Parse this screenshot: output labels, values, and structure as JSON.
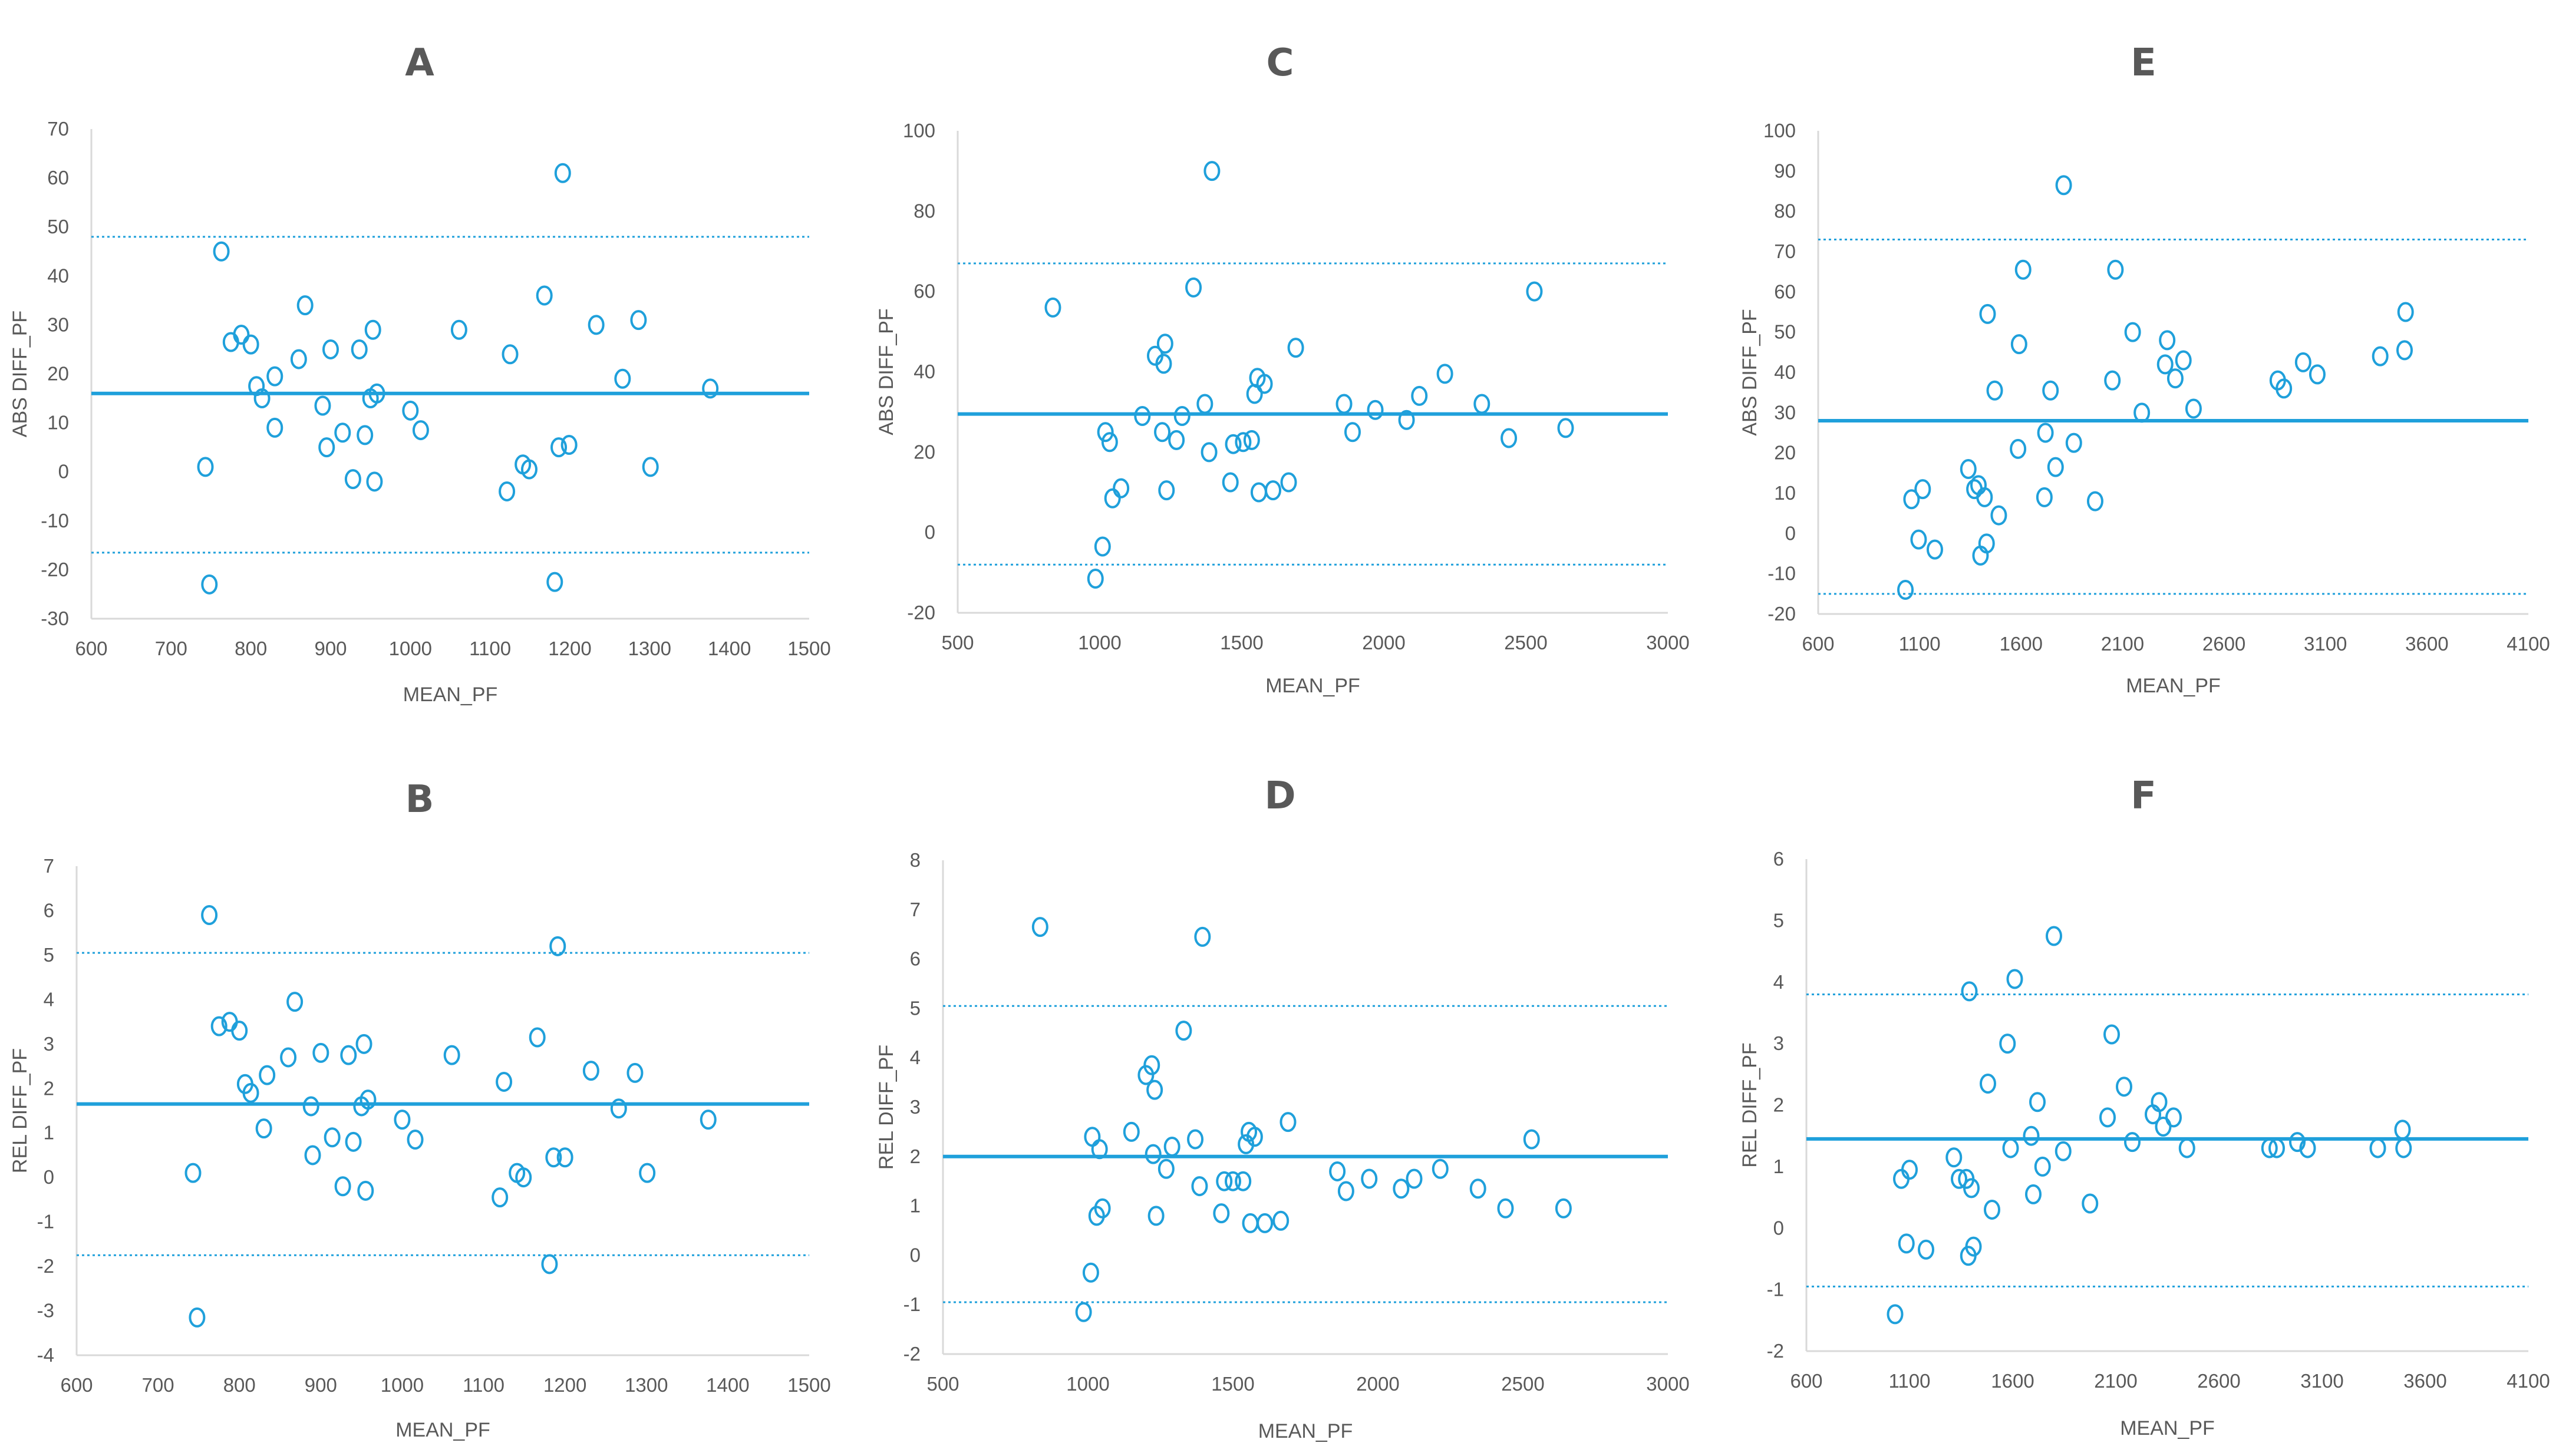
{
  "chart_data": [
    {
      "id": "A",
      "type": "scatter",
      "title": "A",
      "xlabel": "MEAN_PF",
      "ylabel": "ABS DIFF_PF",
      "xlim": [
        600,
        1500
      ],
      "ylim": [
        -30,
        70
      ],
      "xticks": [
        600,
        700,
        800,
        900,
        1000,
        1100,
        1200,
        1300,
        1400,
        1500
      ],
      "yticks": [
        -30,
        -20,
        -10,
        0,
        10,
        20,
        30,
        40,
        50,
        60,
        70
      ],
      "mean_diff": 16,
      "loa_upper": 48,
      "loa_lower": -16.5,
      "points": [
        [
          743,
          1
        ],
        [
          748,
          -23
        ],
        [
          763,
          45
        ],
        [
          775,
          26.5
        ],
        [
          788,
          28
        ],
        [
          800,
          26
        ],
        [
          807,
          17.5
        ],
        [
          814,
          15
        ],
        [
          830,
          19.5
        ],
        [
          830,
          9
        ],
        [
          860,
          23
        ],
        [
          868,
          34
        ],
        [
          890,
          13.5
        ],
        [
          895,
          5
        ],
        [
          900,
          25
        ],
        [
          915,
          8
        ],
        [
          928,
          -1.5
        ],
        [
          936,
          25
        ],
        [
          943,
          7.5
        ],
        [
          950,
          15
        ],
        [
          953,
          29
        ],
        [
          955,
          -2
        ],
        [
          958,
          16
        ],
        [
          1000,
          12.5
        ],
        [
          1013,
          8.5
        ],
        [
          1061,
          29
        ],
        [
          1121,
          -4
        ],
        [
          1125,
          24
        ],
        [
          1141,
          1.5
        ],
        [
          1149,
          0.5
        ],
        [
          1168,
          36
        ],
        [
          1181,
          -22.5
        ],
        [
          1186,
          5
        ],
        [
          1191,
          61
        ],
        [
          1199,
          5.5
        ],
        [
          1233,
          30
        ],
        [
          1266,
          19
        ],
        [
          1286,
          31
        ],
        [
          1301,
          1
        ],
        [
          1376,
          17
        ]
      ]
    },
    {
      "id": "B",
      "type": "scatter",
      "title": "B",
      "xlabel": "MEAN_PF",
      "ylabel": "REL DIFF_PF",
      "xlim": [
        600,
        1500
      ],
      "ylim": [
        -4,
        7
      ],
      "xticks": [
        600,
        700,
        800,
        900,
        1000,
        1100,
        1200,
        1300,
        1400,
        1500
      ],
      "yticks": [
        -4,
        -3,
        -2,
        -1,
        0,
        1,
        2,
        3,
        4,
        5,
        6,
        7
      ],
      "mean_diff": 1.65,
      "loa_upper": 5.05,
      "loa_lower": -1.75,
      "points": [
        [
          743,
          0.1
        ],
        [
          748,
          -3.15
        ],
        [
          763,
          5.9
        ],
        [
          775,
          3.4
        ],
        [
          788,
          3.5
        ],
        [
          800,
          3.3
        ],
        [
          807,
          2.1
        ],
        [
          814,
          1.9
        ],
        [
          830,
          1.1
        ],
        [
          834,
          2.3
        ],
        [
          860,
          2.7
        ],
        [
          868,
          3.95
        ],
        [
          888,
          1.6
        ],
        [
          890,
          0.5
        ],
        [
          900,
          2.8
        ],
        [
          914,
          0.9
        ],
        [
          927,
          -0.2
        ],
        [
          934,
          2.75
        ],
        [
          940,
          0.8
        ],
        [
          950,
          1.6
        ],
        [
          953,
          3.0
        ],
        [
          955,
          -0.3
        ],
        [
          958,
          1.75
        ],
        [
          1000,
          1.3
        ],
        [
          1016,
          0.85
        ],
        [
          1061,
          2.75
        ],
        [
          1120,
          -0.45
        ],
        [
          1125,
          2.15
        ],
        [
          1141,
          0.1
        ],
        [
          1149,
          0
        ],
        [
          1166,
          3.15
        ],
        [
          1181,
          -1.95
        ],
        [
          1186,
          0.45
        ],
        [
          1191,
          5.2
        ],
        [
          1200,
          0.45
        ],
        [
          1232,
          2.4
        ],
        [
          1266,
          1.55
        ],
        [
          1286,
          2.35
        ],
        [
          1301,
          0.1
        ],
        [
          1376,
          1.3
        ]
      ]
    },
    {
      "id": "C",
      "type": "scatter",
      "title": "C",
      "xlabel": "MEAN_PF",
      "ylabel": "ABS DIFF_PF",
      "xlim": [
        500,
        3000
      ],
      "ylim": [
        -20,
        100
      ],
      "xticks": [
        500,
        1000,
        1500,
        2000,
        2500,
        3000
      ],
      "yticks": [
        -20,
        0,
        20,
        40,
        60,
        80,
        100
      ],
      "mean_diff": 29.5,
      "loa_upper": 67,
      "loa_lower": -8,
      "points": [
        [
          835,
          56
        ],
        [
          985,
          -11.5
        ],
        [
          1010,
          -3.5
        ],
        [
          1020,
          25
        ],
        [
          1035,
          22.5
        ],
        [
          1045,
          8.5
        ],
        [
          1075,
          11
        ],
        [
          1150,
          29
        ],
        [
          1195,
          44
        ],
        [
          1220,
          25
        ],
        [
          1225,
          42
        ],
        [
          1230,
          47
        ],
        [
          1235,
          10.5
        ],
        [
          1270,
          23
        ],
        [
          1290,
          29
        ],
        [
          1330,
          61
        ],
        [
          1370,
          32
        ],
        [
          1385,
          20
        ],
        [
          1395,
          90
        ],
        [
          1460,
          12.5
        ],
        [
          1470,
          22
        ],
        [
          1505,
          22.5
        ],
        [
          1535,
          23
        ],
        [
          1545,
          34.5
        ],
        [
          1555,
          38.5
        ],
        [
          1560,
          10
        ],
        [
          1580,
          37
        ],
        [
          1610,
          10.5
        ],
        [
          1665,
          12.5
        ],
        [
          1690,
          46
        ],
        [
          1860,
          32
        ],
        [
          1890,
          25
        ],
        [
          1970,
          30.5
        ],
        [
          2080,
          28
        ],
        [
          2125,
          34
        ],
        [
          2215,
          39.5
        ],
        [
          2345,
          32
        ],
        [
          2440,
          23.5
        ],
        [
          2530,
          60
        ],
        [
          2640,
          26
        ]
      ]
    },
    {
      "id": "D",
      "type": "scatter",
      "title": "D",
      "xlabel": "MEAN_PF",
      "ylabel": "REL DIFF_PF",
      "xlim": [
        500,
        3000
      ],
      "ylim": [
        -2,
        8
      ],
      "xticks": [
        500,
        1000,
        1500,
        2000,
        2500,
        3000
      ],
      "yticks": [
        -2,
        -1,
        0,
        1,
        2,
        3,
        4,
        5,
        6,
        7,
        8
      ],
      "mean_diff": 2.0,
      "loa_upper": 5.05,
      "loa_lower": -0.95,
      "points": [
        [
          835,
          6.65
        ],
        [
          985,
          -1.15
        ],
        [
          1010,
          -0.35
        ],
        [
          1015,
          2.4
        ],
        [
          1030,
          0.8
        ],
        [
          1040,
          2.15
        ],
        [
          1050,
          0.95
        ],
        [
          1150,
          2.5
        ],
        [
          1200,
          3.65
        ],
        [
          1220,
          3.85
        ],
        [
          1225,
          2.05
        ],
        [
          1230,
          3.35
        ],
        [
          1235,
          0.8
        ],
        [
          1270,
          1.75
        ],
        [
          1290,
          2.2
        ],
        [
          1330,
          4.55
        ],
        [
          1370,
          2.35
        ],
        [
          1385,
          1.4
        ],
        [
          1395,
          6.45
        ],
        [
          1460,
          0.85
        ],
        [
          1470,
          1.5
        ],
        [
          1500,
          1.5
        ],
        [
          1535,
          1.5
        ],
        [
          1545,
          2.25
        ],
        [
          1555,
          2.5
        ],
        [
          1560,
          0.65
        ],
        [
          1575,
          2.4
        ],
        [
          1610,
          0.65
        ],
        [
          1665,
          0.7
        ],
        [
          1690,
          2.7
        ],
        [
          1860,
          1.7
        ],
        [
          1890,
          1.3
        ],
        [
          1970,
          1.55
        ],
        [
          2080,
          1.35
        ],
        [
          2125,
          1.55
        ],
        [
          2215,
          1.75
        ],
        [
          2345,
          1.35
        ],
        [
          2440,
          0.95
        ],
        [
          2530,
          2.35
        ],
        [
          2640,
          0.95
        ]
      ]
    },
    {
      "id": "E",
      "type": "scatter",
      "title": "E",
      "xlabel": "MEAN_PF",
      "ylabel": "ABS DIFF_PF",
      "xlim": [
        600,
        4100
      ],
      "ylim": [
        -20,
        100
      ],
      "xticks": [
        600,
        1100,
        1600,
        2100,
        2600,
        3100,
        3600,
        4100
      ],
      "yticks": [
        -20,
        -10,
        0,
        10,
        20,
        30,
        40,
        50,
        60,
        70,
        80,
        90,
        100
      ],
      "mean_diff": 28,
      "loa_upper": 73,
      "loa_lower": -15,
      "points": [
        [
          1030,
          -14
        ],
        [
          1060,
          8.5
        ],
        [
          1095,
          -1.5
        ],
        [
          1115,
          11
        ],
        [
          1175,
          -4
        ],
        [
          1340,
          16
        ],
        [
          1370,
          11
        ],
        [
          1390,
          12
        ],
        [
          1400,
          -5.5
        ],
        [
          1420,
          9
        ],
        [
          1430,
          -2.5
        ],
        [
          1435,
          54.5
        ],
        [
          1470,
          35.5
        ],
        [
          1490,
          4.5
        ],
        [
          1585,
          21
        ],
        [
          1590,
          47
        ],
        [
          1610,
          65.5
        ],
        [
          1715,
          9
        ],
        [
          1720,
          25
        ],
        [
          1745,
          35.5
        ],
        [
          1770,
          16.5
        ],
        [
          1810,
          86.5
        ],
        [
          1860,
          22.5
        ],
        [
          1965,
          8
        ],
        [
          2050,
          38
        ],
        [
          2065,
          65.5
        ],
        [
          2150,
          50
        ],
        [
          2195,
          30
        ],
        [
          2310,
          42
        ],
        [
          2320,
          48
        ],
        [
          2360,
          38.5
        ],
        [
          2400,
          43
        ],
        [
          2450,
          31
        ],
        [
          2865,
          38
        ],
        [
          2895,
          36
        ],
        [
          2990,
          42.5
        ],
        [
          3060,
          39.5
        ],
        [
          3370,
          44
        ],
        [
          3490,
          45.5
        ],
        [
          3495,
          55
        ]
      ]
    },
    {
      "id": "F",
      "type": "scatter",
      "title": "F",
      "xlabel": "MEAN_PF",
      "ylabel": "REL DIFF_PF",
      "xlim": [
        600,
        4100
      ],
      "ylim": [
        -2,
        6
      ],
      "xticks": [
        600,
        1100,
        1600,
        2100,
        2600,
        3100,
        3600,
        4100
      ],
      "yticks": [
        -2,
        -1,
        0,
        1,
        2,
        3,
        4,
        5,
        6
      ],
      "mean_diff": 1.45,
      "loa_upper": 3.8,
      "loa_lower": -0.95,
      "points": [
        [
          1030,
          -1.4
        ],
        [
          1060,
          0.8
        ],
        [
          1085,
          -0.25
        ],
        [
          1100,
          0.95
        ],
        [
          1180,
          -0.35
        ],
        [
          1315,
          1.15
        ],
        [
          1340,
          0.8
        ],
        [
          1375,
          0.8
        ],
        [
          1385,
          -0.45
        ],
        [
          1390,
          3.85
        ],
        [
          1400,
          0.65
        ],
        [
          1410,
          -0.3
        ],
        [
          1480,
          2.35
        ],
        [
          1500,
          0.3
        ],
        [
          1575,
          3.0
        ],
        [
          1590,
          1.3
        ],
        [
          1610,
          4.05
        ],
        [
          1690,
          1.5
        ],
        [
          1700,
          0.55
        ],
        [
          1720,
          2.05
        ],
        [
          1745,
          1.0
        ],
        [
          1800,
          4.75
        ],
        [
          1845,
          1.25
        ],
        [
          1975,
          0.4
        ],
        [
          2060,
          1.8
        ],
        [
          2080,
          3.15
        ],
        [
          2140,
          2.3
        ],
        [
          2180,
          1.4
        ],
        [
          2280,
          1.85
        ],
        [
          2310,
          2.05
        ],
        [
          2330,
          1.65
        ],
        [
          2380,
          1.8
        ],
        [
          2445,
          1.3
        ],
        [
          2845,
          1.3
        ],
        [
          2880,
          1.3
        ],
        [
          2980,
          1.4
        ],
        [
          3030,
          1.3
        ],
        [
          3370,
          1.3
        ],
        [
          3490,
          1.6
        ],
        [
          3495,
          1.3
        ]
      ]
    }
  ]
}
